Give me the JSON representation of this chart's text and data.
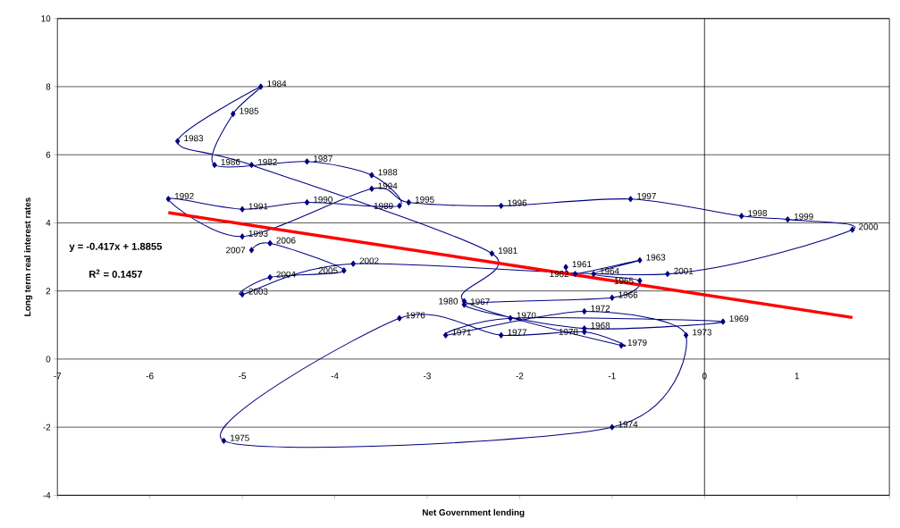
{
  "chart_data": {
    "type": "line",
    "xlabel": "Net Government lending",
    "ylabel": "Long term real interest rates",
    "x": [
      -1.5,
      -1.4,
      -0.7,
      -1.2,
      -0.7,
      -1.0,
      -2.6,
      -1.3,
      0.2,
      -2.1,
      -2.8,
      -1.3,
      -0.2,
      -1.0,
      -5.2,
      -3.3,
      -2.2,
      -1.3,
      -0.9,
      -2.6,
      -2.3,
      -4.9,
      -5.7,
      -4.8,
      -5.1,
      -5.3,
      -4.3,
      -3.6,
      -3.3,
      -4.3,
      -5.0,
      -5.8,
      -5.0,
      -3.6,
      -3.2,
      -2.2,
      -0.8,
      0.4,
      0.9,
      1.6,
      -0.4,
      -3.8,
      -5.0,
      -4.7,
      -3.9,
      -4.7,
      -4.9
    ],
    "series": [
      {
        "color": "#000080",
        "marker": "diamond",
        "values": [
          2.7,
          2.5,
          2.9,
          2.5,
          2.3,
          1.8,
          1.6,
          0.9,
          1.1,
          1.2,
          0.7,
          1.4,
          0.7,
          -2.0,
          -2.4,
          1.2,
          0.7,
          0.8,
          0.4,
          1.7,
          3.1,
          5.7,
          6.4,
          8.0,
          7.2,
          5.7,
          5.8,
          5.4,
          4.5,
          4.6,
          4.4,
          4.7,
          3.6,
          5.0,
          4.6,
          4.5,
          4.7,
          4.2,
          4.1,
          3.8,
          2.5,
          2.8,
          1.9,
          2.4,
          2.6,
          3.4,
          3.2
        ]
      },
      {
        "type": "line",
        "x": [
          -5.8,
          1.6
        ],
        "values": [
          4.3,
          1.22
        ],
        "color": "#ff0000",
        "marker": "none"
      }
    ],
    "annotations": [
      "**y = -0.417x + 1.8855**",
      "**R$^{2}$ = 0.1457**",
      {
        "text": "1961",
        "x": -1.5,
        "y": 2.7
      },
      {
        "text": "1962",
        "x": -1.4,
        "y": 2.5
      },
      {
        "text": "1963",
        "x": -0.7,
        "y": 2.9
      },
      {
        "text": "1964",
        "x": -1.2,
        "y": 2.5
      },
      {
        "text": "1965",
        "x": -0.7,
        "y": 2.3
      },
      {
        "text": "1966",
        "x": -1.0,
        "y": 1.8
      },
      {
        "text": "1967",
        "x": -2.6,
        "y": 1.6
      },
      {
        "text": "1968",
        "x": -1.3,
        "y": 0.9
      },
      {
        "text": "1969",
        "x": 0.2,
        "y": 1.1
      },
      {
        "text": "1970",
        "x": -2.1,
        "y": 1.2
      },
      {
        "text": "1971",
        "x": -2.8,
        "y": 0.7
      },
      {
        "text": "1972",
        "x": -1.3,
        "y": 1.4
      },
      {
        "text": "1973",
        "x": -0.2,
        "y": 0.7
      },
      {
        "text": "1974",
        "x": -1.0,
        "y": -2.0
      },
      {
        "text": "1975",
        "x": -5.2,
        "y": -2.4
      },
      {
        "text": "1976",
        "x": -3.3,
        "y": 1.2
      },
      {
        "text": "1977",
        "x": -2.2,
        "y": 0.7
      },
      {
        "text": "1978",
        "x": -1.3,
        "y": 0.8
      },
      {
        "text": "1979",
        "x": -0.9,
        "y": 0.4
      },
      {
        "text": "1980",
        "x": -2.6,
        "y": 1.7
      },
      {
        "text": "1981",
        "x": -2.3,
        "y": 3.1
      },
      {
        "text": "1982",
        "x": -4.9,
        "y": 5.7
      },
      {
        "text": "1983",
        "x": -5.7,
        "y": 6.4
      },
      {
        "text": "1984",
        "x": -4.8,
        "y": 8.0
      },
      {
        "text": "1985",
        "x": -5.1,
        "y": 7.2
      },
      {
        "text": "1986",
        "x": -5.3,
        "y": 5.7
      },
      {
        "text": "1987",
        "x": -4.3,
        "y": 5.8
      },
      {
        "text": "1988",
        "x": -3.6,
        "y": 5.4
      },
      {
        "text": "1989",
        "x": -3.3,
        "y": 4.5
      },
      {
        "text": "1990",
        "x": -4.3,
        "y": 4.6
      },
      {
        "text": "1991",
        "x": -5.0,
        "y": 4.4
      },
      {
        "text": "1992",
        "x": -5.8,
        "y": 4.7
      },
      {
        "text": "1993",
        "x": -5.0,
        "y": 3.6
      },
      {
        "text": "1994",
        "x": -3.6,
        "y": 5.0
      },
      {
        "text": "1995",
        "x": -3.2,
        "y": 4.6
      },
      {
        "text": "1996",
        "x": -2.2,
        "y": 4.5
      },
      {
        "text": "1997",
        "x": -0.8,
        "y": 4.7
      },
      {
        "text": "1998",
        "x": 0.4,
        "y": 4.2
      },
      {
        "text": "1999",
        "x": 0.9,
        "y": 4.1
      },
      {
        "text": "2000",
        "x": 1.6,
        "y": 3.8
      },
      {
        "text": "2001",
        "x": -0.4,
        "y": 2.5
      },
      {
        "text": "2002",
        "x": -3.8,
        "y": 2.8
      },
      {
        "text": "2003",
        "x": -5.0,
        "y": 1.9
      },
      {
        "text": "2004",
        "x": -4.7,
        "y": 2.4
      },
      {
        "text": "2005",
        "x": -3.9,
        "y": 2.6
      },
      {
        "text": "2006",
        "x": -4.7,
        "y": 3.4
      },
      {
        "text": "2007",
        "x": -4.9,
        "y": 3.2
      }
    ],
    "ref_lines": [
      {
        "axis": "x",
        "value": 0,
        "color": "#000000"
      }
    ],
    "xlim": [
      -7,
      2
    ],
    "ylim": [
      -4,
      10
    ],
    "xticks": [
      -7,
      -6,
      -5,
      -4,
      -3,
      -2,
      -1,
      0,
      1,
      {
        "value": 2,
        "label": null
      }
    ],
    "yticks": [
      -4,
      -2,
      0,
      2,
      4,
      6,
      8,
      10
    ],
    "grid": "y"
  }
}
